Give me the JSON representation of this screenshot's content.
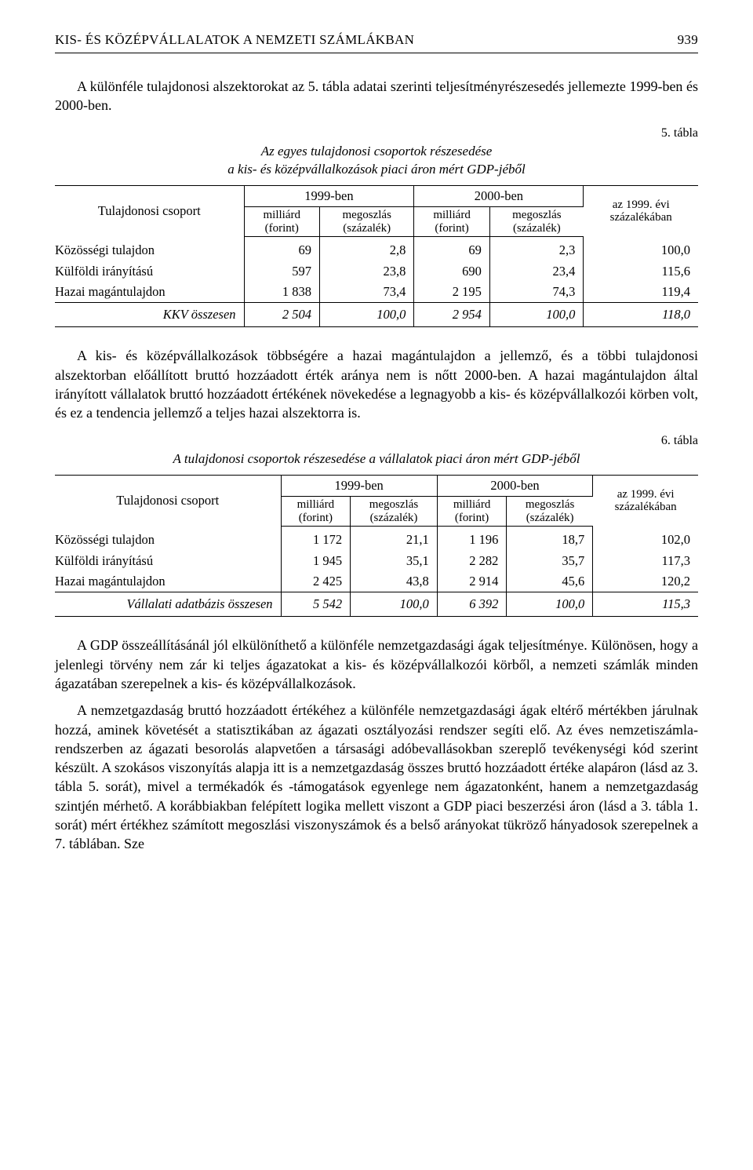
{
  "page": {
    "runningHead": "KIS- ÉS KÖZÉPVÁLLALATOK A NEMZETI SZÁMLÁKBAN",
    "pageNumber": "939"
  },
  "para1": "A különféle tulajdonosi alszektorokat az 5. tábla adatai szerinti teljesítményrészesedés jellemezte 1999-ben és 2000-ben.",
  "table5": {
    "num": "5. tábla",
    "title": "Az egyes tulajdonosi csoportok részesedése\na kis- és középvállalkozások piaci áron mért GDP-jéből",
    "headers": {
      "group": "Tulajdonosi csoport",
      "y1": "1999-ben",
      "y2": "2000-ben",
      "mill": "milliárd",
      "forint": "(forint)",
      "meg": "megoszlás",
      "szaz": "(százalék)",
      "az1999": "az 1999. évi",
      "szazalek": "százalékában"
    },
    "rows": [
      {
        "label": "Közösségi tulajdon",
        "v1": "69",
        "p1": "2,8",
        "v2": "69",
        "p2": "2,3",
        "idx": "100,0"
      },
      {
        "label": "Külföldi irányítású",
        "v1": "597",
        "p1": "23,8",
        "v2": "690",
        "p2": "23,4",
        "idx": "115,6"
      },
      {
        "label": "Hazai magántulajdon",
        "v1": "1 838",
        "p1": "73,4",
        "v2": "2 195",
        "p2": "74,3",
        "idx": "119,4"
      }
    ],
    "sum": {
      "label": "KKV összesen",
      "v1": "2 504",
      "p1": "100,0",
      "v2": "2 954",
      "p2": "100,0",
      "idx": "118,0"
    }
  },
  "para2": "A kis- és középvállalkozások többségére a hazai magántulajdon a jellemző, és a többi tulajdonosi alszektorban előállított bruttó hozzáadott érték aránya nem is nőtt 2000-ben. A hazai magántulajdon által irányított vállalatok bruttó hozzáadott értékének növekedése a legnagyobb a kis- és középvállalkozói körben volt, és ez a tendencia jellemző a teljes hazai alszektorra is.",
  "table6": {
    "num": "6. tábla",
    "title": "A tulajdonosi csoportok részesedése a vállalatok piaci áron mért GDP-jéből",
    "rows": [
      {
        "label": "Közösségi tulajdon",
        "v1": "1 172",
        "p1": "21,1",
        "v2": "1 196",
        "p2": "18,7",
        "idx": "102,0"
      },
      {
        "label": "Külföldi irányítású",
        "v1": "1 945",
        "p1": "35,1",
        "v2": "2 282",
        "p2": "35,7",
        "idx": "117,3"
      },
      {
        "label": "Hazai magántulajdon",
        "v1": "2 425",
        "p1": "43,8",
        "v2": "2 914",
        "p2": "45,6",
        "idx": "120,2"
      }
    ],
    "sum": {
      "label": "Vállalati adatbázis összesen",
      "v1": "5 542",
      "p1": "100,0",
      "v2": "6 392",
      "p2": "100,0",
      "idx": "115,3"
    }
  },
  "para3": "A GDP összeállításánál jól elkülöníthető a különféle nemzetgazdasági ágak teljesítménye. Különösen, hogy a jelenlegi törvény nem zár ki teljes ágazatokat a kis- és középvállalkozói körből, a nemzeti számlák minden ágazatában szerepelnek a kis- és középvállalkozások.",
  "para4": "A nemzetgazdaság bruttó hozzáadott értékéhez a különféle nemzetgazdasági ágak eltérő mértékben járulnak hozzá, aminek követését a statisztikában az ágazati osztályozási rendszer segíti elő. Az éves nemzetiszámla-rendszerben az ágazati besorolás alapvetően a társasági adóbevallásokban szereplő tevékenységi kód szerint készült. A szokásos viszonyítás alapja itt is a nemzetgazdaság összes bruttó hozzáadott értéke alapáron (lásd az 3. tábla 5. sorát), mivel a termékadók és -támogatások egyenlege nem ágazatonként, hanem a nemzetgazdaság szintjén mérhető. A korábbiakban felépített logika mellett viszont a GDP piaci beszerzési áron (lásd a 3. tábla 1. sorát) mért értékhez számított megoszlási viszonyszámok és a belső arányokat tükröző hányadosok szerepelnek a 7. táblában. Sze"
}
